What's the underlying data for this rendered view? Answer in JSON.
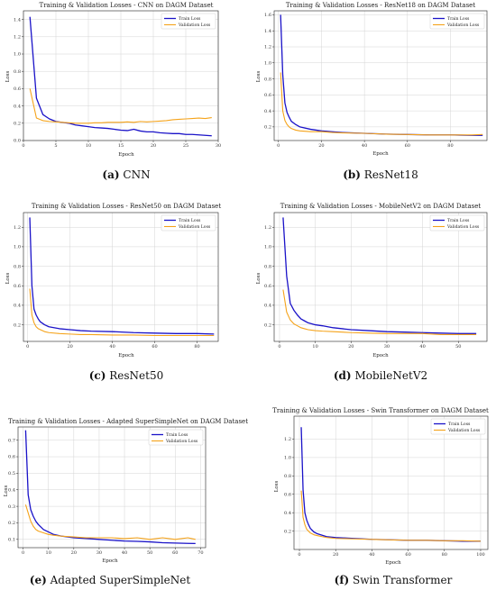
{
  "colors": {
    "train": "#1a12c8",
    "validation": "#f5a31a"
  },
  "captions": [
    {
      "letter": "(a)",
      "text": "CNN"
    },
    {
      "letter": "(b)",
      "text": "ResNet18"
    },
    {
      "letter": "(c)",
      "text": "ResNet50"
    },
    {
      "letter": "(d)",
      "text": "MobileNetV2"
    },
    {
      "letter": "(e)",
      "text": "Adapted SuperSimpleNet"
    },
    {
      "letter": "(f)",
      "text": "Swin Transformer"
    }
  ],
  "chart_data": [
    {
      "type": "line",
      "title": "Training & Validation Losses - CNN on DAGM Dataset",
      "xlabel": "Epoch",
      "ylabel": "Loss",
      "xlim": [
        0,
        30
      ],
      "ylim": [
        0,
        1.5
      ],
      "xticks": [
        0,
        5,
        10,
        15,
        20,
        25,
        30
      ],
      "yticks": [
        0.0,
        0.2,
        0.4,
        0.6,
        0.8,
        1.0,
        1.2,
        1.4
      ],
      "legend": "top-right",
      "grid": true,
      "series": [
        {
          "name": "Train Loss",
          "x": [
            1,
            2,
            3,
            4,
            5,
            6,
            7,
            8,
            9,
            10,
            11,
            12,
            13,
            14,
            15,
            16,
            17,
            18,
            19,
            20,
            21,
            22,
            23,
            24,
            25,
            26,
            27,
            28,
            29
          ],
          "y": [
            1.43,
            0.49,
            0.3,
            0.25,
            0.22,
            0.21,
            0.2,
            0.18,
            0.17,
            0.16,
            0.15,
            0.145,
            0.14,
            0.13,
            0.12,
            0.115,
            0.13,
            0.11,
            0.1,
            0.1,
            0.09,
            0.085,
            0.08,
            0.08,
            0.07,
            0.07,
            0.065,
            0.06,
            0.055
          ]
        },
        {
          "name": "Validation Loss",
          "x": [
            1,
            2,
            3,
            4,
            5,
            6,
            7,
            8,
            9,
            10,
            11,
            12,
            13,
            14,
            15,
            16,
            17,
            18,
            19,
            20,
            21,
            22,
            23,
            24,
            25,
            26,
            27,
            28,
            29
          ],
          "y": [
            0.6,
            0.26,
            0.23,
            0.22,
            0.215,
            0.21,
            0.205,
            0.2,
            0.2,
            0.2,
            0.205,
            0.205,
            0.21,
            0.21,
            0.21,
            0.215,
            0.21,
            0.22,
            0.215,
            0.22,
            0.225,
            0.23,
            0.24,
            0.245,
            0.25,
            0.255,
            0.26,
            0.255,
            0.265
          ]
        }
      ]
    },
    {
      "type": "line",
      "title": "Training & Validation Losses - ResNet18 on DAGM Dataset",
      "xlabel": "Epoch",
      "ylabel": "Loss",
      "xlim": [
        -2,
        97
      ],
      "ylim": [
        0.03,
        1.65
      ],
      "xticks": [
        0,
        20,
        40,
        60,
        80
      ],
      "yticks": [
        0.2,
        0.4,
        0.6,
        0.8,
        1.0,
        1.2,
        1.4,
        1.6
      ],
      "legend": "top-right",
      "grid": true,
      "series": [
        {
          "name": "Train Loss",
          "x": [
            1,
            2,
            3,
            4,
            5,
            6,
            8,
            10,
            15,
            20,
            25,
            30,
            40,
            50,
            60,
            70,
            80,
            90,
            95
          ],
          "y": [
            1.6,
            0.85,
            0.5,
            0.38,
            0.32,
            0.27,
            0.23,
            0.2,
            0.17,
            0.15,
            0.14,
            0.13,
            0.12,
            0.11,
            0.105,
            0.1,
            0.1,
            0.095,
            0.095
          ]
        },
        {
          "name": "Validation Loss",
          "x": [
            1,
            2,
            3,
            4,
            5,
            6,
            8,
            10,
            15,
            20,
            25,
            30,
            40,
            50,
            60,
            70,
            80,
            90,
            95
          ],
          "y": [
            0.88,
            0.4,
            0.28,
            0.23,
            0.2,
            0.18,
            0.16,
            0.15,
            0.14,
            0.14,
            0.13,
            0.125,
            0.12,
            0.11,
            0.105,
            0.1,
            0.1,
            0.1,
            0.105
          ]
        }
      ]
    },
    {
      "type": "line",
      "title": "Training & Validation Losses - ResNet50 on DAGM Dataset",
      "xlabel": "Epoch",
      "ylabel": "Loss",
      "xlim": [
        -2,
        90
      ],
      "ylim": [
        0.03,
        1.35
      ],
      "xticks": [
        0,
        20,
        40,
        60,
        80
      ],
      "yticks": [
        0.2,
        0.4,
        0.6,
        0.8,
        1.0,
        1.2
      ],
      "legend": "top-right",
      "grid": true,
      "series": [
        {
          "name": "Train Loss",
          "x": [
            1,
            2,
            3,
            4,
            5,
            6,
            8,
            10,
            15,
            20,
            25,
            30,
            40,
            50,
            60,
            70,
            80,
            88
          ],
          "y": [
            1.3,
            0.6,
            0.36,
            0.3,
            0.26,
            0.23,
            0.2,
            0.18,
            0.16,
            0.15,
            0.14,
            0.135,
            0.13,
            0.12,
            0.115,
            0.11,
            0.11,
            0.105
          ]
        },
        {
          "name": "Validation Loss",
          "x": [
            1,
            2,
            3,
            4,
            5,
            6,
            8,
            10,
            15,
            20,
            25,
            30,
            40,
            50,
            60,
            70,
            80,
            88
          ],
          "y": [
            0.57,
            0.3,
            0.22,
            0.18,
            0.16,
            0.15,
            0.13,
            0.12,
            0.11,
            0.105,
            0.1,
            0.1,
            0.095,
            0.095,
            0.09,
            0.09,
            0.09,
            0.09
          ]
        }
      ]
    },
    {
      "type": "line",
      "title": "Training & Validation Losses - MobileNetV2 on DAGM Dataset",
      "xlabel": "Epoch",
      "ylabel": "Loss",
      "xlim": [
        -1.5,
        58
      ],
      "ylim": [
        0.03,
        1.35
      ],
      "xticks": [
        0,
        10,
        20,
        30,
        40,
        50
      ],
      "yticks": [
        0.2,
        0.4,
        0.6,
        0.8,
        1.0,
        1.2
      ],
      "legend": "top-right",
      "grid": true,
      "series": [
        {
          "name": "Train Loss",
          "x": [
            1,
            2,
            3,
            4,
            5,
            6,
            7,
            8,
            10,
            12,
            15,
            20,
            25,
            30,
            35,
            40,
            45,
            50,
            55
          ],
          "y": [
            1.3,
            0.7,
            0.42,
            0.35,
            0.3,
            0.26,
            0.24,
            0.22,
            0.2,
            0.19,
            0.17,
            0.15,
            0.14,
            0.13,
            0.125,
            0.12,
            0.115,
            0.11,
            0.11
          ]
        },
        {
          "name": "Validation Loss",
          "x": [
            1,
            2,
            3,
            4,
            5,
            6,
            7,
            8,
            10,
            12,
            15,
            20,
            25,
            30,
            35,
            40,
            45,
            50,
            55
          ],
          "y": [
            0.56,
            0.33,
            0.25,
            0.21,
            0.19,
            0.17,
            0.16,
            0.15,
            0.14,
            0.135,
            0.13,
            0.12,
            0.115,
            0.11,
            0.11,
            0.11,
            0.1,
            0.1,
            0.1
          ]
        }
      ]
    },
    {
      "type": "line",
      "title": "Training & Validation Losses - Adapted SuperSimpleNet on DAGM Dataset",
      "xlabel": "Epoch",
      "ylabel": "Loss",
      "xlim": [
        -2,
        72
      ],
      "ylim": [
        0.05,
        0.78
      ],
      "xticks": [
        0,
        10,
        20,
        30,
        40,
        50,
        60,
        70
      ],
      "yticks": [
        0.1,
        0.2,
        0.3,
        0.4,
        0.5,
        0.6,
        0.7
      ],
      "legend": "top-right",
      "grid": true,
      "series": [
        {
          "name": "Train Loss",
          "x": [
            1,
            2,
            3,
            4,
            5,
            6,
            8,
            10,
            12,
            15,
            20,
            25,
            30,
            35,
            40,
            45,
            50,
            55,
            60,
            65,
            68
          ],
          "y": [
            0.76,
            0.37,
            0.28,
            0.24,
            0.21,
            0.19,
            0.16,
            0.145,
            0.13,
            0.12,
            0.11,
            0.105,
            0.1,
            0.095,
            0.09,
            0.088,
            0.085,
            0.08,
            0.078,
            0.076,
            0.075
          ]
        },
        {
          "name": "Validation Loss",
          "x": [
            1,
            2,
            3,
            4,
            5,
            6,
            8,
            10,
            12,
            15,
            20,
            25,
            30,
            35,
            40,
            45,
            50,
            55,
            60,
            65,
            68
          ],
          "y": [
            0.31,
            0.26,
            0.21,
            0.18,
            0.16,
            0.15,
            0.14,
            0.13,
            0.125,
            0.12,
            0.115,
            0.11,
            0.11,
            0.11,
            0.105,
            0.11,
            0.1,
            0.11,
            0.1,
            0.11,
            0.1
          ]
        }
      ]
    },
    {
      "type": "line",
      "title": "Training & Validation Losses - Swin Transformer on DAGM Dataset",
      "xlabel": "Epoch",
      "ylabel": "Loss",
      "xlim": [
        -3,
        104
      ],
      "ylim": [
        0.0,
        1.45
      ],
      "xticks": [
        0,
        20,
        40,
        60,
        80,
        100
      ],
      "yticks": [
        0.2,
        0.4,
        0.6,
        0.8,
        1.0,
        1.2
      ],
      "legend": "top-right",
      "grid": true,
      "series": [
        {
          "name": "Train Loss",
          "x": [
            1,
            2,
            3,
            4,
            5,
            6,
            8,
            10,
            15,
            20,
            30,
            40,
            50,
            60,
            70,
            80,
            90,
            100
          ],
          "y": [
            1.33,
            0.65,
            0.4,
            0.32,
            0.27,
            0.23,
            0.19,
            0.17,
            0.14,
            0.13,
            0.12,
            0.11,
            0.105,
            0.1,
            0.1,
            0.095,
            0.09,
            0.09
          ]
        },
        {
          "name": "Validation Loss",
          "x": [
            1,
            2,
            3,
            4,
            5,
            6,
            8,
            10,
            15,
            20,
            30,
            40,
            50,
            60,
            70,
            80,
            90,
            100
          ],
          "y": [
            0.64,
            0.35,
            0.27,
            0.22,
            0.2,
            0.18,
            0.16,
            0.15,
            0.13,
            0.12,
            0.115,
            0.11,
            0.105,
            0.1,
            0.1,
            0.095,
            0.095,
            0.09
          ]
        }
      ]
    }
  ]
}
